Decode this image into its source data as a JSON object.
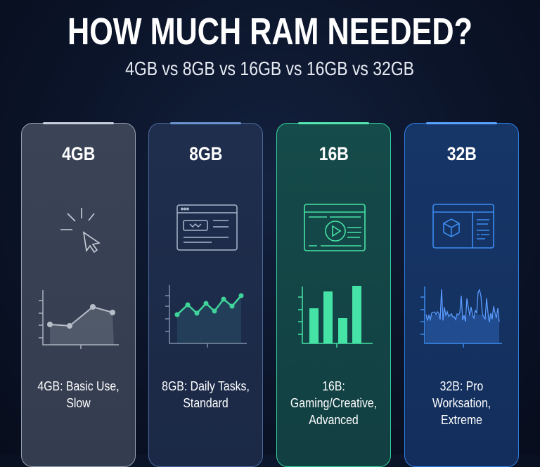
{
  "header": {
    "title": "HOW MUCH RAM NEEDED?",
    "subtitle": "4GB vs 8GB vs 16GB vs 16GB vs 32GB"
  },
  "cards": [
    {
      "label": "4GB",
      "line1": "4GB: Basic Use,",
      "line2": "Slow",
      "icon": "cursor-click-icon",
      "accent": "#c9d0dc"
    },
    {
      "label": "8GB",
      "line1": "8GB: Daily Tasks,",
      "line2": "Standard",
      "icon": "browser-window-icon",
      "accent": "#3fd49a"
    },
    {
      "label": "16B",
      "line1": "16B: Gaming/Creative,",
      "line2": "Advanced",
      "icon": "video-player-window-icon",
      "accent": "#46e3a6"
    },
    {
      "label": "32B",
      "line1": "32B: Pro Worksation,",
      "line2": "Extreme",
      "icon": "3d-cube-window-icon",
      "accent": "#3d8cf0"
    }
  ]
}
